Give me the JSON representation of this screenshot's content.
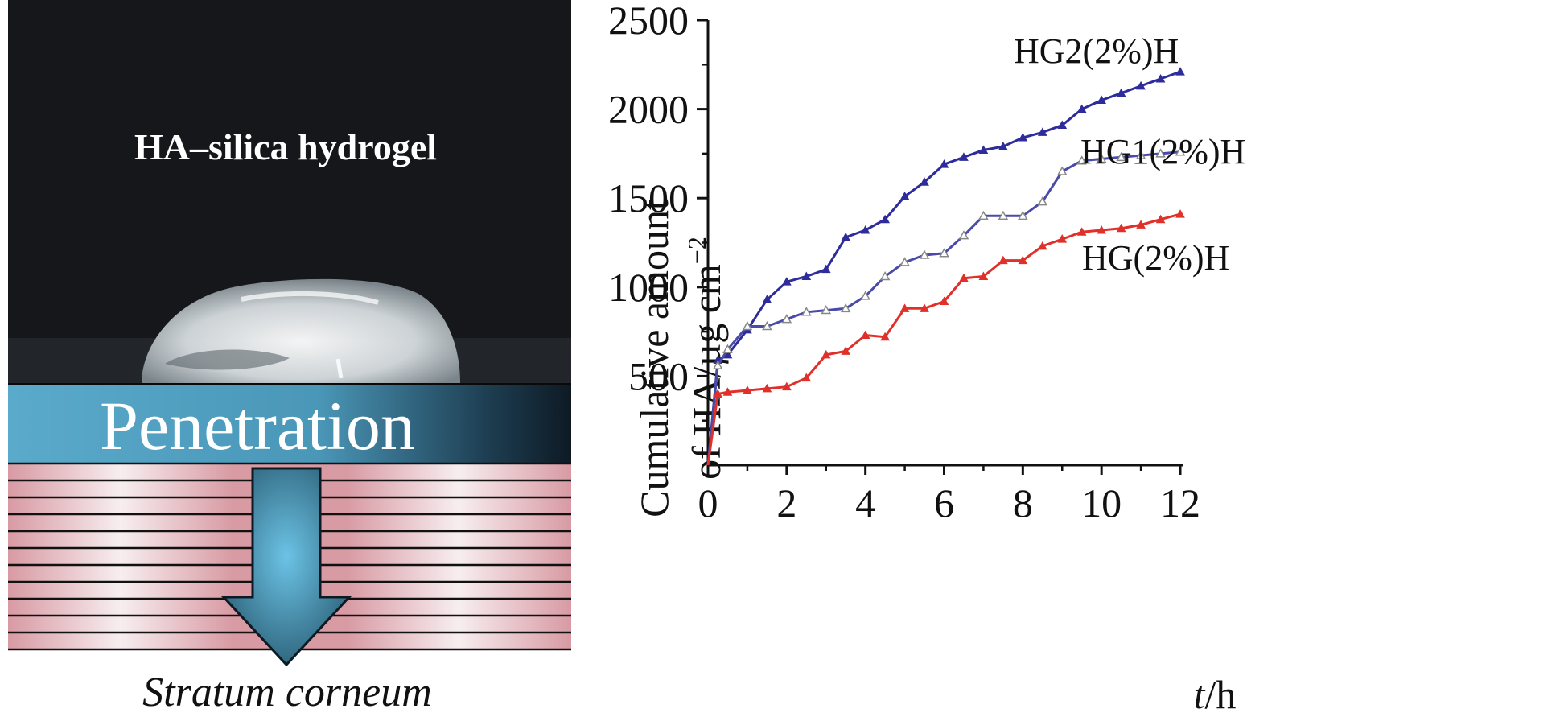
{
  "illustration": {
    "photo_label": "HA–silica hydrogel",
    "arrow_label": "Penetration",
    "layer_label": "Stratum corneum"
  },
  "chart_data": {
    "type": "line",
    "title": "",
    "xlabel": "t/h",
    "xlabel_parts": {
      "var": "t",
      "unit": "/h"
    },
    "ylabel": "Cumulative amount of HA/µg cm⁻²",
    "ylabel_lines": {
      "line1": "Cumulative amount",
      "line2_main": "of HA/µg cm",
      "line2_sup": "−2"
    },
    "xlim": [
      0,
      12
    ],
    "ylim": [
      0,
      2500
    ],
    "x_ticks": [
      0,
      2,
      4,
      6,
      8,
      10,
      12
    ],
    "y_ticks": [
      500,
      1000,
      1500,
      2000,
      2500
    ],
    "legend_placement": "inline labels at right end of each line",
    "series": [
      {
        "name": "HG2(2%)H",
        "color": "#2e2c9a",
        "marker": "filled-triangle",
        "x": [
          0,
          0.25,
          0.5,
          1,
          1.5,
          2,
          2.5,
          3,
          3.5,
          4,
          4.5,
          5,
          5.5,
          6,
          6.5,
          7,
          7.5,
          8,
          8.5,
          9,
          9.5,
          10,
          10.5,
          11,
          11.5,
          12
        ],
        "y": [
          0,
          590,
          620,
          760,
          930,
          1030,
          1060,
          1100,
          1280,
          1320,
          1380,
          1510,
          1590,
          1690,
          1730,
          1770,
          1790,
          1840,
          1870,
          1910,
          2000,
          2050,
          2090,
          2130,
          2170,
          2210
        ]
      },
      {
        "name": "HG1(2%)H",
        "color": "#4a4aa8",
        "marker": "open-triangle",
        "x": [
          0,
          0.25,
          0.5,
          1,
          1.5,
          2,
          2.5,
          3,
          3.5,
          4,
          4.5,
          5,
          5.5,
          6,
          6.5,
          7,
          7.5,
          8,
          8.5,
          9,
          9.5,
          10,
          10.5,
          11,
          11.5,
          12
        ],
        "y": [
          0,
          560,
          650,
          780,
          780,
          820,
          860,
          870,
          880,
          950,
          1060,
          1140,
          1180,
          1190,
          1290,
          1400,
          1400,
          1400,
          1480,
          1650,
          1710,
          1720,
          1730,
          1740,
          1750,
          1760
        ]
      },
      {
        "name": "HG(2%)H",
        "color": "#e0302a",
        "marker": "filled-triangle",
        "x": [
          0,
          0.25,
          0.5,
          1,
          1.5,
          2,
          2.5,
          3,
          3.5,
          4,
          4.5,
          5,
          5.5,
          6,
          6.5,
          7,
          7.5,
          8,
          8.5,
          9,
          9.5,
          10,
          10.5,
          11,
          11.5,
          12
        ],
        "y": [
          0,
          400,
          410,
          420,
          430,
          440,
          490,
          620,
          640,
          730,
          720,
          880,
          880,
          920,
          1050,
          1060,
          1150,
          1150,
          1230,
          1270,
          1310,
          1320,
          1330,
          1350,
          1380,
          1410
        ]
      }
    ]
  }
}
